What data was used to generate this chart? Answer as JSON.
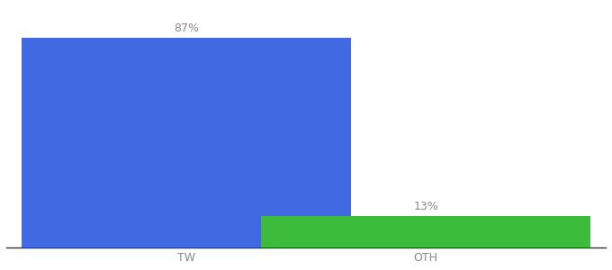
{
  "categories": [
    "TW",
    "OTH"
  ],
  "values": [
    87,
    13
  ],
  "bar_colors": [
    "#4169e1",
    "#3dbb3d"
  ],
  "title": "",
  "label_fontsize": 9,
  "tick_fontsize": 9,
  "ylim": [
    0,
    100
  ],
  "background_color": "#ffffff",
  "bar_width": 0.55,
  "label_color": "#888888",
  "x_positions": [
    0.3,
    0.7
  ]
}
